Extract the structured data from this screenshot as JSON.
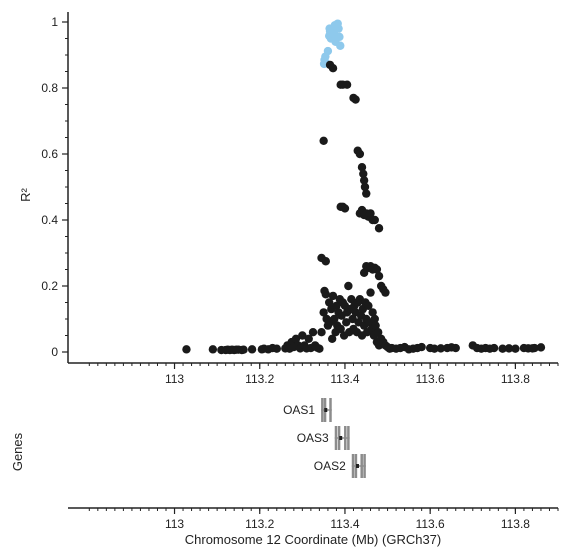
{
  "chart_data": [
    {
      "type": "scatter",
      "panel": "association",
      "title": "",
      "xlabel": "",
      "ylabel": "R²",
      "xlim": [
        112.75,
        113.9
      ],
      "ylim": [
        0,
        1.0
      ],
      "x_ticks": [
        113,
        113.2,
        113.4,
        113.6,
        113.8
      ],
      "x_tick_labels": [
        "113",
        "113.2",
        "113.4",
        "113.6",
        "113.8"
      ],
      "y_ticks": [
        0,
        0.2,
        0.4,
        0.6,
        0.8,
        1
      ],
      "y_tick_labels": [
        "0",
        "0.2",
        "0.4",
        "0.6",
        "0.8",
        "1"
      ],
      "grid": false,
      "series": [
        {
          "color": "#8ec9ec",
          "points": [
            [
              113.351,
              0.873
            ],
            [
              113.352,
              0.885
            ],
            [
              113.354,
              0.895
            ],
            [
              113.356,
              0.875
            ],
            [
              113.36,
              0.912
            ],
            [
              113.363,
              0.958
            ],
            [
              113.365,
              0.972
            ],
            [
              113.367,
              0.95
            ],
            [
              113.37,
              0.965
            ],
            [
              113.372,
              0.975
            ],
            [
              113.375,
              0.962
            ],
            [
              113.378,
              0.94
            ],
            [
              113.381,
              0.985
            ],
            [
              113.383,
              0.995
            ],
            [
              113.385,
              0.98
            ],
            [
              113.387,
              0.955
            ],
            [
              113.389,
              0.928
            ],
            [
              113.364,
              0.98
            ],
            [
              113.376,
              0.99
            ]
          ]
        },
        {
          "color": "#1a1a1a",
          "points": [
            [
              113.028,
              0.008
            ],
            [
              113.09,
              0.008
            ],
            [
              113.11,
              0.006
            ],
            [
              113.12,
              0.006
            ],
            [
              113.125,
              0.007
            ],
            [
              113.13,
              0.006
            ],
            [
              113.135,
              0.007
            ],
            [
              113.14,
              0.006
            ],
            [
              113.145,
              0.007
            ],
            [
              113.15,
              0.007
            ],
            [
              113.158,
              0.006
            ],
            [
              113.162,
              0.007
            ],
            [
              113.182,
              0.008
            ],
            [
              113.205,
              0.008
            ],
            [
              113.21,
              0.01
            ],
            [
              113.22,
              0.008
            ],
            [
              113.23,
              0.012
            ],
            [
              113.24,
              0.01
            ],
            [
              113.26,
              0.011
            ],
            [
              113.265,
              0.02
            ],
            [
              113.27,
              0.01
            ],
            [
              113.275,
              0.03
            ],
            [
              113.28,
              0.015
            ],
            [
              113.285,
              0.04
            ],
            [
              113.29,
              0.02
            ],
            [
              113.295,
              0.011
            ],
            [
              113.3,
              0.05
            ],
            [
              113.305,
              0.02
            ],
            [
              113.31,
              0.011
            ],
            [
              113.315,
              0.04
            ],
            [
              113.32,
              0.012
            ],
            [
              113.325,
              0.06
            ],
            [
              113.33,
              0.02
            ],
            [
              113.335,
              0.013
            ],
            [
              113.34,
              0.01
            ],
            [
              113.345,
              0.06
            ],
            [
              113.35,
              0.12
            ],
            [
              113.352,
              0.185
            ],
            [
              113.355,
              0.175
            ],
            [
              113.357,
              0.1
            ],
            [
              113.36,
              0.08
            ],
            [
              113.363,
              0.15
            ],
            [
              113.365,
              0.09
            ],
            [
              113.368,
              0.13
            ],
            [
              113.37,
              0.04
            ],
            [
              113.372,
              0.17
            ],
            [
              113.375,
              0.1
            ],
            [
              113.378,
              0.06
            ],
            [
              113.38,
              0.14
            ],
            [
              113.382,
              0.08
            ],
            [
              113.385,
              0.12
            ],
            [
              113.388,
              0.16
            ],
            [
              113.39,
              0.07
            ],
            [
              113.392,
              0.11
            ],
            [
              113.395,
              0.15
            ],
            [
              113.398,
              0.05
            ],
            [
              113.4,
              0.14
            ],
            [
              113.403,
              0.09
            ],
            [
              113.405,
              0.12
            ],
            [
              113.408,
              0.2
            ],
            [
              113.41,
              0.06
            ],
            [
              113.412,
              0.13
            ],
            [
              113.415,
              0.16
            ],
            [
              113.418,
              0.1
            ],
            [
              113.42,
              0.07
            ],
            [
              113.422,
              0.14
            ],
            [
              113.425,
              0.12
            ],
            [
              113.428,
              0.06
            ],
            [
              113.43,
              0.15
            ],
            [
              113.432,
              0.09
            ],
            [
              113.435,
              0.16
            ],
            [
              113.438,
              0.11
            ],
            [
              113.44,
              0.05
            ],
            [
              113.442,
              0.13
            ],
            [
              113.445,
              0.08
            ],
            [
              113.448,
              0.15
            ],
            [
              113.45,
              0.1
            ],
            [
              113.452,
              0.06
            ],
            [
              113.455,
              0.14
            ],
            [
              113.458,
              0.09
            ],
            [
              113.46,
              0.18
            ],
            [
              113.463,
              0.07
            ],
            [
              113.465,
              0.12
            ],
            [
              113.468,
              0.05
            ],
            [
              113.47,
              0.1
            ],
            [
              113.472,
              0.08
            ],
            [
              113.475,
              0.03
            ],
            [
              113.478,
              0.06
            ],
            [
              113.48,
              0.02
            ],
            [
              113.485,
              0.04
            ],
            [
              113.49,
              0.03
            ],
            [
              113.495,
              0.02
            ],
            [
              113.5,
              0.015
            ],
            [
              113.505,
              0.01
            ],
            [
              113.51,
              0.012
            ],
            [
              113.52,
              0.01
            ],
            [
              113.53,
              0.012
            ],
            [
              113.54,
              0.015
            ],
            [
              113.55,
              0.008
            ],
            [
              113.56,
              0.01
            ],
            [
              113.57,
              0.012
            ],
            [
              113.58,
              0.015
            ],
            [
              113.6,
              0.012
            ],
            [
              113.61,
              0.01
            ],
            [
              113.625,
              0.011
            ],
            [
              113.64,
              0.012
            ],
            [
              113.65,
              0.014
            ],
            [
              113.66,
              0.012
            ],
            [
              113.7,
              0.02
            ],
            [
              113.71,
              0.012
            ],
            [
              113.72,
              0.01
            ],
            [
              113.73,
              0.012
            ],
            [
              113.74,
              0.01
            ],
            [
              113.75,
              0.012
            ],
            [
              113.77,
              0.01
            ],
            [
              113.785,
              0.011
            ],
            [
              113.8,
              0.01
            ],
            [
              113.82,
              0.012
            ],
            [
              113.83,
              0.011
            ],
            [
              113.84,
              0.011
            ],
            [
              113.845,
              0.012
            ],
            [
              113.86,
              0.014
            ],
            [
              113.35,
              0.64
            ],
            [
              113.355,
              0.275
            ],
            [
              113.345,
              0.285
            ],
            [
              113.365,
              0.87
            ],
            [
              113.372,
              0.86
            ],
            [
              113.39,
              0.81
            ],
            [
              113.395,
              0.81
            ],
            [
              113.405,
              0.81
            ],
            [
              113.42,
              0.77
            ],
            [
              113.425,
              0.765
            ],
            [
              113.43,
              0.61
            ],
            [
              113.435,
              0.6
            ],
            [
              113.44,
              0.56
            ],
            [
              113.443,
              0.54
            ],
            [
              113.445,
              0.52
            ],
            [
              113.447,
              0.5
            ],
            [
              113.45,
              0.48
            ],
            [
              113.39,
              0.44
            ],
            [
              113.395,
              0.44
            ],
            [
              113.4,
              0.435
            ],
            [
              113.435,
              0.42
            ],
            [
              113.44,
              0.43
            ],
            [
              113.445,
              0.415
            ],
            [
              113.45,
              0.42
            ],
            [
              113.455,
              0.41
            ],
            [
              113.46,
              0.42
            ],
            [
              113.465,
              0.4
            ],
            [
              113.47,
              0.4
            ],
            [
              113.48,
              0.375
            ],
            [
              113.445,
              0.24
            ],
            [
              113.45,
              0.26
            ],
            [
              113.455,
              0.255
            ],
            [
              113.46,
              0.26
            ],
            [
              113.465,
              0.25
            ],
            [
              113.47,
              0.255
            ],
            [
              113.475,
              0.25
            ],
            [
              113.48,
              0.23
            ],
            [
              113.485,
              0.2
            ],
            [
              113.49,
              0.19
            ],
            [
              113.495,
              0.18
            ]
          ]
        }
      ]
    },
    {
      "type": "gene-track",
      "panel": "genes",
      "ylabel": "Genes",
      "xlabel": "Chromosome 12 Coordinate (Mb) (GRCh37)",
      "xlim": [
        112.75,
        113.9
      ],
      "x_ticks": [
        113,
        113.2,
        113.4,
        113.6,
        113.8
      ],
      "x_tick_labels": [
        "113",
        "113.2",
        "113.4",
        "113.6",
        "113.8"
      ],
      "genes": [
        {
          "name": "OAS1",
          "start": 113.344,
          "end": 113.369
        },
        {
          "name": "OAS3",
          "start": 113.376,
          "end": 113.411
        },
        {
          "name": "OAS2",
          "start": 113.416,
          "end": 113.449
        }
      ],
      "gene_color": "#8c8c8c"
    }
  ]
}
